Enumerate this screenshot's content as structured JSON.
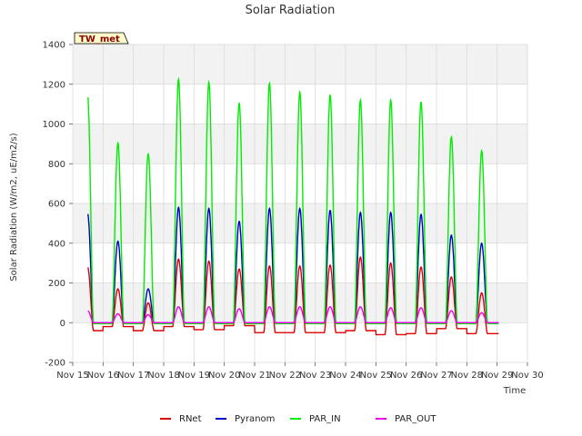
{
  "chart_data": {
    "type": "line",
    "title": "Solar Radiation",
    "xlabel": "Time",
    "ylabel": "Solar Radiation (W/m2, uE/m2/s)",
    "badge": "TW_met",
    "ylim": [
      -200,
      1400
    ],
    "yticks": [
      -200,
      0,
      200,
      400,
      600,
      800,
      1000,
      1200,
      1400
    ],
    "xlim": [
      "Nov 15",
      "Nov 30"
    ],
    "xticks": [
      "Nov 15",
      "Nov 16",
      "Nov 17",
      "Nov 18",
      "Nov 19",
      "Nov 20",
      "Nov 21",
      "Nov 22",
      "Nov 23",
      "Nov 24",
      "Nov 25",
      "Nov 26",
      "Nov 27",
      "Nov 28",
      "Nov 29",
      "Nov 30"
    ],
    "grid": true,
    "legend_position": "bottom",
    "days": [
      "Nov 15",
      "Nov 16",
      "Nov 17",
      "Nov 18",
      "Nov 19",
      "Nov 20",
      "Nov 21",
      "Nov 22",
      "Nov 23",
      "Nov 24",
      "Nov 25",
      "Nov 26",
      "Nov 27",
      "Nov 28"
    ],
    "series": [
      {
        "name": "RNet",
        "color": "#dd0000",
        "daily_peak": [
          280,
          170,
          100,
          320,
          310,
          270,
          285,
          285,
          290,
          330,
          300,
          280,
          230,
          150
        ],
        "night_value": [
          -40,
          -20,
          -40,
          -20,
          -35,
          -15,
          -50,
          -50,
          -50,
          -40,
          -60,
          -55,
          -30,
          -55
        ]
      },
      {
        "name": "Pyranom",
        "color": "#0000cc",
        "daily_peak": [
          550,
          410,
          170,
          580,
          575,
          510,
          575,
          575,
          565,
          555,
          555,
          545,
          440,
          400
        ],
        "night_value": [
          0,
          0,
          0,
          0,
          0,
          0,
          0,
          0,
          0,
          0,
          0,
          0,
          0,
          0
        ]
      },
      {
        "name": "PAR_IN",
        "color": "#00ee00",
        "daily_peak": [
          1140,
          905,
          850,
          1225,
          1210,
          1105,
          1205,
          1160,
          1145,
          1120,
          1120,
          1110,
          935,
          865
        ],
        "night_value": [
          -5,
          -5,
          -5,
          -5,
          -5,
          -5,
          -5,
          -5,
          -5,
          -5,
          -5,
          -5,
          -5,
          -5
        ]
      },
      {
        "name": "PAR_OUT",
        "color": "#ee00ee",
        "daily_peak": [
          60,
          45,
          40,
          80,
          80,
          70,
          80,
          80,
          80,
          80,
          75,
          75,
          60,
          50
        ],
        "night_value": [
          0,
          0,
          0,
          0,
          0,
          0,
          0,
          0,
          0,
          0,
          0,
          0,
          0,
          0
        ]
      }
    ]
  }
}
